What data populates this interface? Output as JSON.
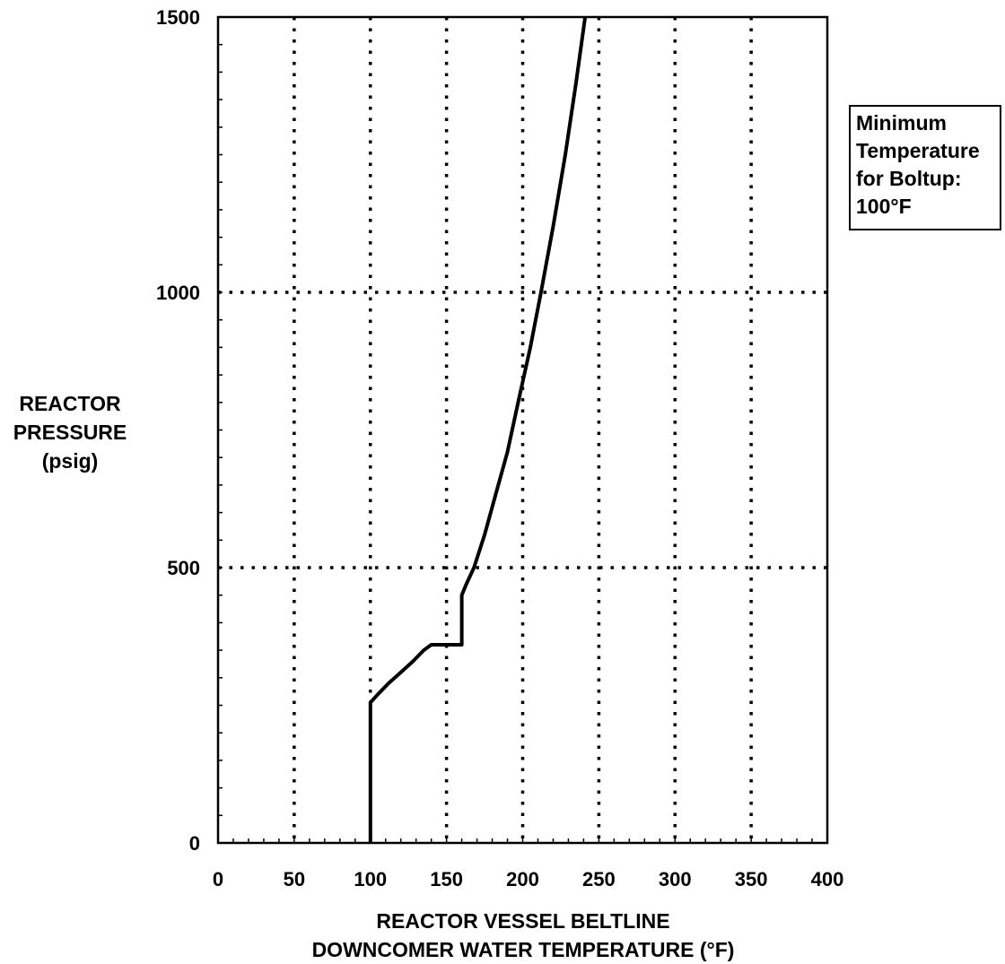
{
  "chart_data": {
    "type": "line",
    "title": "",
    "xlabel": [
      "REACTOR VESSEL BELTLINE",
      "DOWNCOMER WATER TEMPERATURE (°F)"
    ],
    "ylabel": [
      "REACTOR",
      "PRESSURE",
      "(psig)"
    ],
    "xlim": [
      0,
      400
    ],
    "ylim": [
      0,
      1500
    ],
    "x_ticks": [
      0,
      50,
      100,
      150,
      200,
      250,
      300,
      350,
      400
    ],
    "y_ticks": [
      0,
      500,
      1000,
      1500
    ],
    "x_tick_labels": [
      "0",
      "50",
      "100",
      "150",
      "200",
      "250",
      "300",
      "350",
      "400"
    ],
    "y_tick_labels": [
      "0",
      "500",
      "1000",
      "1500"
    ],
    "grid": true,
    "grid_style": "dotted",
    "series": [
      {
        "x": [
          100,
          100,
          105,
          112,
          120,
          128,
          135,
          140,
          150,
          160,
          160,
          163,
          168,
          175,
          182,
          190,
          197,
          205,
          212,
          220,
          228,
          235,
          241
        ],
        "y": [
          0,
          255,
          270,
          290,
          310,
          330,
          350,
          360,
          360,
          360,
          450,
          470,
          500,
          560,
          630,
          710,
          800,
          900,
          1000,
          1120,
          1250,
          1380,
          1500
        ],
        "color": "#000000"
      }
    ],
    "annotations": [
      {
        "lines": [
          "Minimum",
          "Temperature",
          "for Boltup:",
          "100°F"
        ]
      }
    ]
  }
}
